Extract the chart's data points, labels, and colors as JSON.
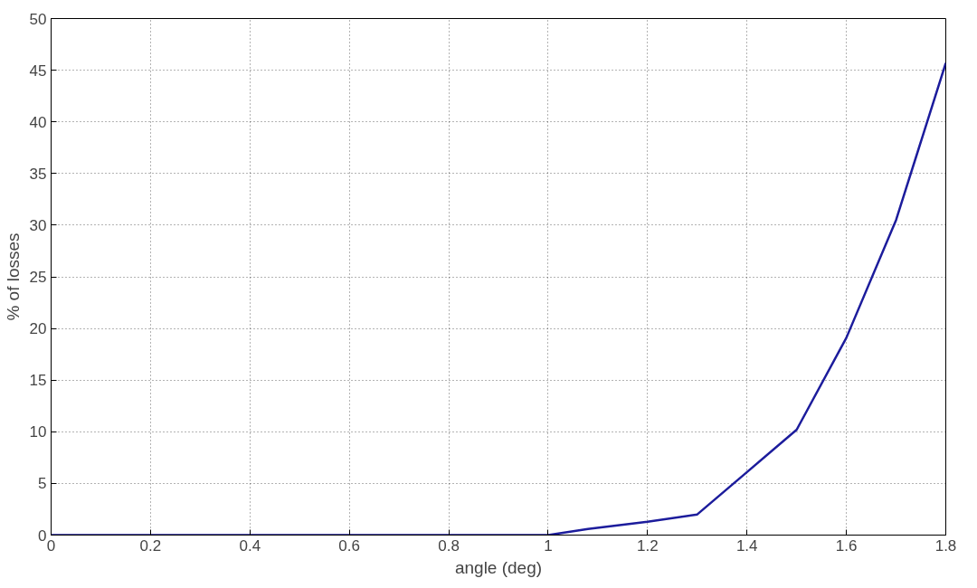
{
  "chart_data": {
    "type": "line",
    "xlabel": "angle (deg)",
    "ylabel": "% of losses",
    "x": [
      0,
      0.1,
      0.2,
      0.3,
      0.4,
      0.5,
      0.6,
      0.7,
      0.8,
      0.9,
      1.0,
      1.08,
      1.2,
      1.3,
      1.4,
      1.5,
      1.6,
      1.7,
      1.8
    ],
    "series": [
      {
        "color": "#1c1c9c",
        "values": [
          0,
          0,
          0,
          0,
          0,
          0,
          0,
          0,
          0,
          0,
          0,
          0.6,
          1.3,
          2,
          6.1,
          10.2,
          19.1,
          30.5,
          45.7
        ]
      }
    ],
    "xlim": [
      0,
      1.8
    ],
    "ylim": [
      0,
      50
    ],
    "xticks": [
      0,
      0.2,
      0.4,
      0.6,
      0.8,
      1,
      1.2,
      1.4,
      1.6,
      1.8
    ],
    "yticks": [
      0,
      5,
      10,
      15,
      20,
      25,
      30,
      35,
      40,
      45,
      50
    ],
    "grid": true,
    "line_style": "solid"
  }
}
